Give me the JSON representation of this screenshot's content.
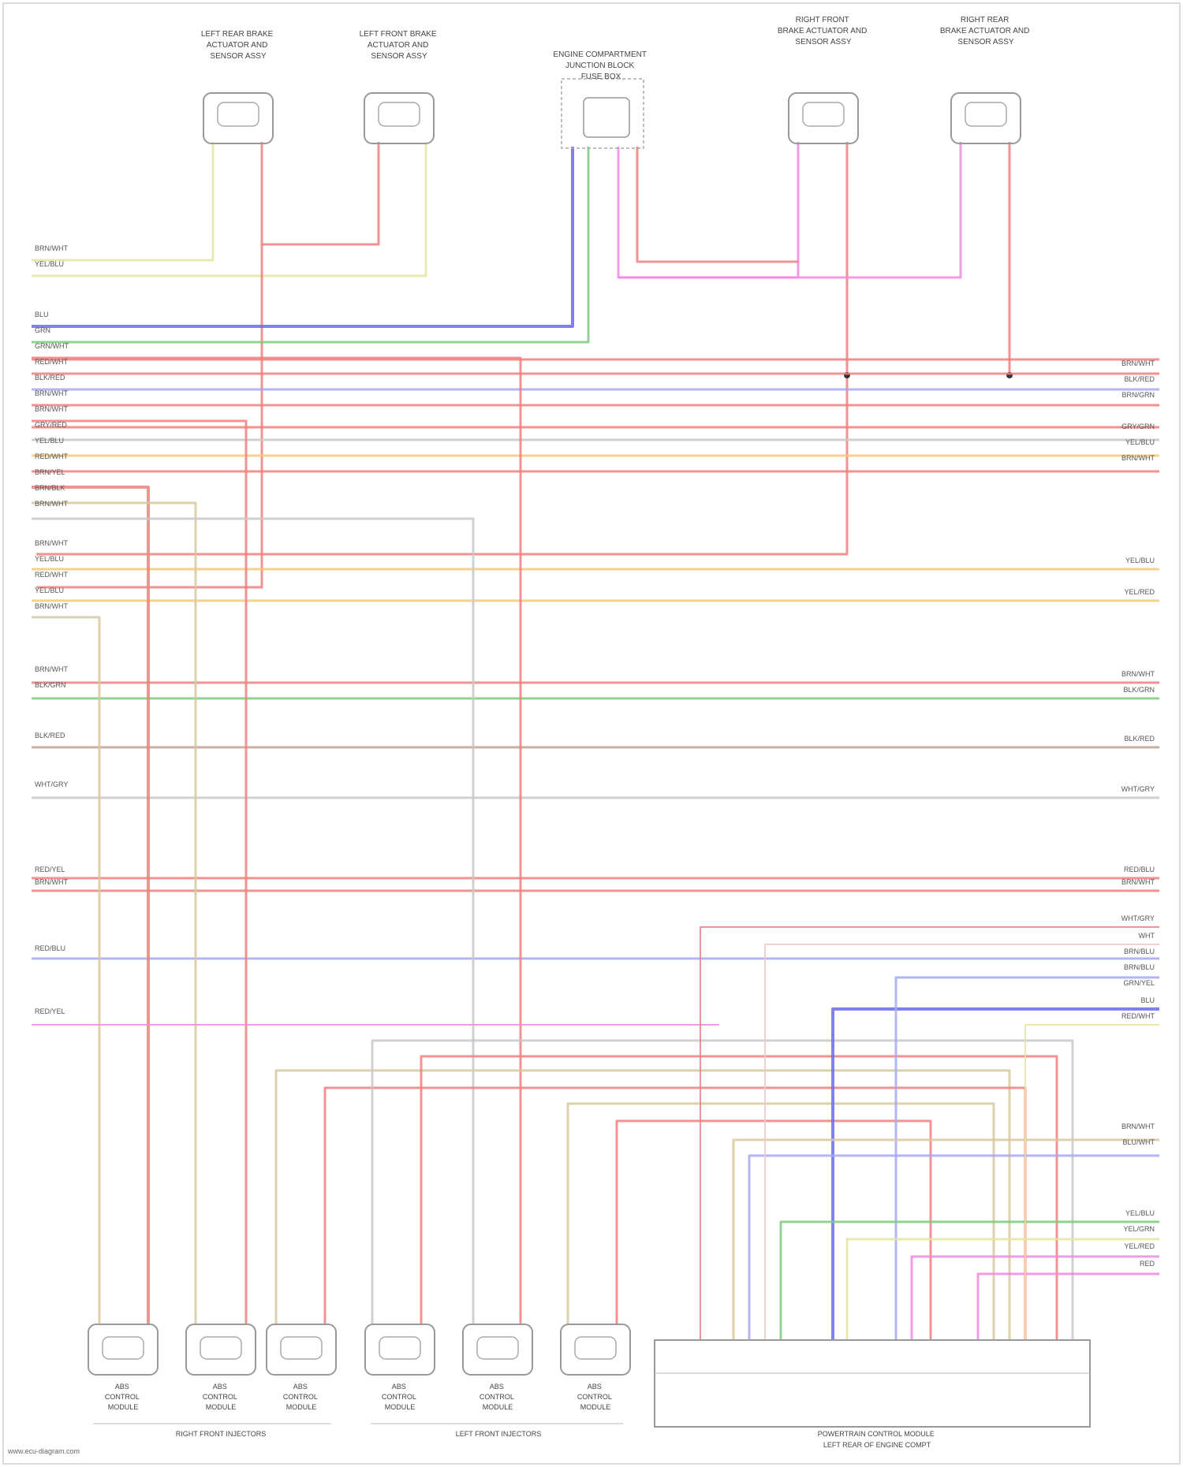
{
  "top_components": [
    {
      "lines": [
        "LEFT REAR BRAKE",
        "ACTUATOR AND",
        "SENSOR ASSY"
      ]
    },
    {
      "lines": [
        "LEFT FRONT BRAKE",
        "ACTUATOR AND",
        "SENSOR ASSY"
      ]
    },
    {
      "lines": [
        "ENGINE COMPARTMENT",
        "JUNCTION BLOCK",
        "FUSE BOX"
      ]
    },
    {
      "lines": [
        "RIGHT FRONT",
        "BRAKE ACTUATOR AND",
        "SENSOR ASSY"
      ]
    },
    {
      "lines": [
        "RIGHT REAR",
        "BRAKE ACTUATOR AND",
        "SENSOR ASSY"
      ]
    }
  ],
  "bottom_components": [
    {
      "lines": [
        "ABS",
        "CONTROL",
        "MODULE"
      ]
    },
    {
      "lines": [
        "ABS",
        "CONTROL",
        "MODULE"
      ]
    },
    {
      "lines": [
        "ABS",
        "CONTROL",
        "MODULE"
      ]
    },
    {
      "lines": [
        "ABS",
        "CONTROL",
        "MODULE"
      ]
    },
    {
      "lines": [
        "ABS",
        "CONTROL",
        "MODULE"
      ]
    },
    {
      "lines": [
        "ABS",
        "CONTROL",
        "MODULE"
      ]
    }
  ],
  "group_labels": {
    "left": "RIGHT FRONT INJECTORS",
    "middle": "LEFT FRONT INJECTORS",
    "right": [
      "POWERTRAIN CONTROL MODULE",
      "LEFT REAR OF ENGINE COMPT"
    ]
  },
  "left_labels": [
    "BRN/WHT",
    "YEL/BLU",
    "BLU",
    "GRN",
    "GRN/WHT",
    "RED/WHT",
    "BLK/RED",
    "BRN/WHT",
    "BRN/WHT",
    "GRY/RED",
    "YEL/BLU",
    "RED/WHT",
    "BRN/YEL",
    "BRN/BLK",
    "BRN/WHT",
    "BRN/WHT",
    "YEL/BLU",
    "RED/WHT",
    "YEL/BLU",
    "BRN/WHT",
    "BRN/WHT",
    "BLK/GRN",
    "BLK/RED",
    "WHT/GRY",
    "RED/YEL",
    "BRN/WHT",
    "RED/BLU",
    "RED/YEL"
  ],
  "right_labels": [
    "BRN/WHT",
    "BLK/RED",
    "BRN/GRN",
    "GRY/GRN",
    "YEL/BLU",
    "BRN/WHT",
    "YEL/BLU",
    "YEL/RED",
    "BRN/WHT",
    "BLK/GRN",
    "BLK/RED",
    "WHT/GRY",
    "RED/BLU",
    "BRN/WHT",
    "WHT/GRY",
    "WHT",
    "BRN/BLU",
    "BRN/BLU",
    "GRN/YEL",
    "BLU",
    "RED/WHT",
    "BRN/WHT",
    "BLU/WHT",
    "YEL/BLU",
    "YEL/GRN",
    "YEL/RED",
    "RED"
  ],
  "credit": "www.ecu-diagram.com"
}
